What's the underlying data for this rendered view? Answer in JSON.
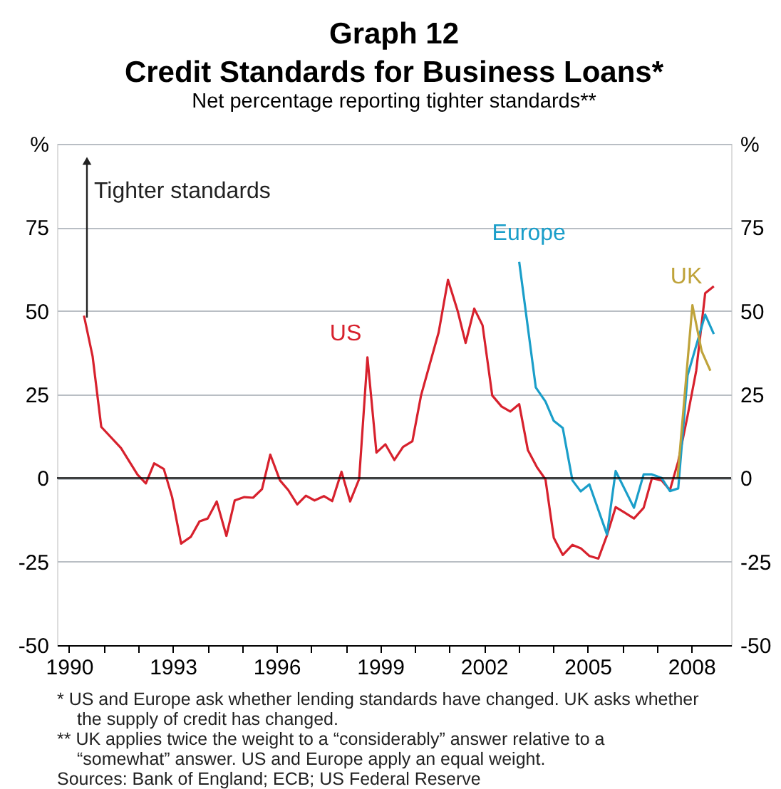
{
  "chart_data": {
    "type": "line",
    "title": "Graph 12\nCredit Standards for Business Loans*",
    "subtitle": "Net percentage reporting tighter standards**",
    "series": [
      {
        "name": "US",
        "color": "#d7212d",
        "x": [
          1990.43,
          1990.68,
          1990.93,
          1991.5,
          1991.98,
          1992.22,
          1992.46,
          1992.74,
          1992.98,
          1993.24,
          1993.52,
          1993.77,
          1994.01,
          1994.27,
          1994.55,
          1994.79,
          1995.07,
          1995.32,
          1995.58,
          1995.82,
          1996.1,
          1996.34,
          1996.6,
          1996.85,
          1997.1,
          1997.37,
          1997.61,
          1997.88,
          1998.13,
          1998.39,
          1998.63,
          1998.89,
          1999.15,
          1999.41,
          1999.66,
          1999.93,
          2000.18,
          2000.69,
          2000.96,
          2001.24,
          2001.47,
          2001.72,
          2001.96,
          2002.24,
          2002.51,
          2002.76,
          2003.02,
          2003.27,
          2003.53,
          2003.78,
          2004.02,
          2004.28,
          2004.56,
          2004.8,
          2005.05,
          2005.31,
          2005.56,
          2005.81,
          2006.08,
          2006.34,
          2006.62,
          2006.86,
          2007.14,
          2007.38,
          2007.62,
          2007.89,
          2008.14,
          2008.4,
          2008.65
        ],
        "values": [
          48.6,
          36.4,
          15.3,
          9,
          1,
          -1.6,
          4.4,
          2.7,
          -5.7,
          -19.6,
          -17.6,
          -13,
          -12.1,
          -7,
          -17.3,
          -6.7,
          -5.7,
          -5.9,
          -3.3,
          7,
          -0.7,
          -3.6,
          -7.9,
          -5.3,
          -6.7,
          -5.4,
          -6.9,
          1.9,
          -7,
          -0.3,
          36.1,
          7.6,
          10.1,
          5.4,
          9.3,
          11,
          24.7,
          43.6,
          59.3,
          50,
          40.4,
          50.7,
          45.7,
          24.7,
          21.4,
          19.9,
          22.1,
          8.4,
          3.3,
          -0.4,
          -17.9,
          -23,
          -20,
          -21,
          -23.3,
          -24.1,
          -17.1,
          -8.7,
          -10.4,
          -12.1,
          -8.9,
          0,
          -0.7,
          -3.6,
          5,
          18.6,
          32.1,
          55.3,
          57.4
        ]
      },
      {
        "name": "Europe",
        "color": "#1a9ec9",
        "x": [
          2003.02,
          2003.5,
          2003.78,
          2004.02,
          2004.28,
          2004.56,
          2004.8,
          2005.05,
          2005.56,
          2005.81,
          2006.34,
          2006.62,
          2006.86,
          2007.14,
          2007.38,
          2007.62,
          2007.89,
          2008.4,
          2008.65
        ],
        "values": [
          64.7,
          27.1,
          22.9,
          17.1,
          15,
          -0.7,
          -4,
          -1.9,
          -16.9,
          2.1,
          -8.9,
          1.1,
          1.1,
          0,
          -3.9,
          -3.1,
          30.7,
          48.9,
          43.1
        ]
      },
      {
        "name": "UK",
        "color": "#bfa33a",
        "x": [
          2007.6,
          2008.03,
          2008.3,
          2008.55
        ],
        "values": [
          0,
          51.7,
          37.9,
          32.1
        ]
      }
    ],
    "xlim": [
      1989.65,
      2009.15
    ],
    "xticks": [
      1990,
      {
        "value": 1991,
        "label": null
      },
      {
        "value": 1992,
        "label": null
      },
      1993,
      {
        "value": 1994,
        "label": null
      },
      {
        "value": 1995,
        "label": null
      },
      1996,
      {
        "value": 1997,
        "label": null
      },
      {
        "value": 1998,
        "label": null
      },
      1999,
      {
        "value": 2000,
        "label": null
      },
      {
        "value": 2001,
        "label": null
      },
      2002,
      {
        "value": 2003,
        "label": null
      },
      {
        "value": 2004,
        "label": null
      },
      2005,
      {
        "value": 2006,
        "label": null
      },
      {
        "value": 2007,
        "label": null
      },
      2008
    ],
    "ylim": [
      -50,
      100
    ],
    "yticks": [
      -50,
      -25,
      0,
      25,
      50,
      75,
      {
        "value": 100,
        "label": "%"
      }
    ],
    "y2lim": [
      -50,
      100
    ],
    "y2ticks": [
      -50,
      -25,
      0,
      25,
      50,
      75,
      {
        "value": 100,
        "label": "%"
      }
    ],
    "grid": "y",
    "ref_lines": [
      {
        "axis": "y",
        "value": 0,
        "color": "#000000"
      }
    ],
    "line_style": "solid",
    "annotations": [
      "Tighter standards",
      "* US and Europe ask whether lending standards have changed. UK asks whether the supply of credit has changed.",
      "** UK applies twice the weight to a “considerably” answer relative to a “somewhat” answer. US and Europe apply an equal weight.",
      "Sources: Bank of England; ECB; US Federal Reserve"
    ]
  }
}
